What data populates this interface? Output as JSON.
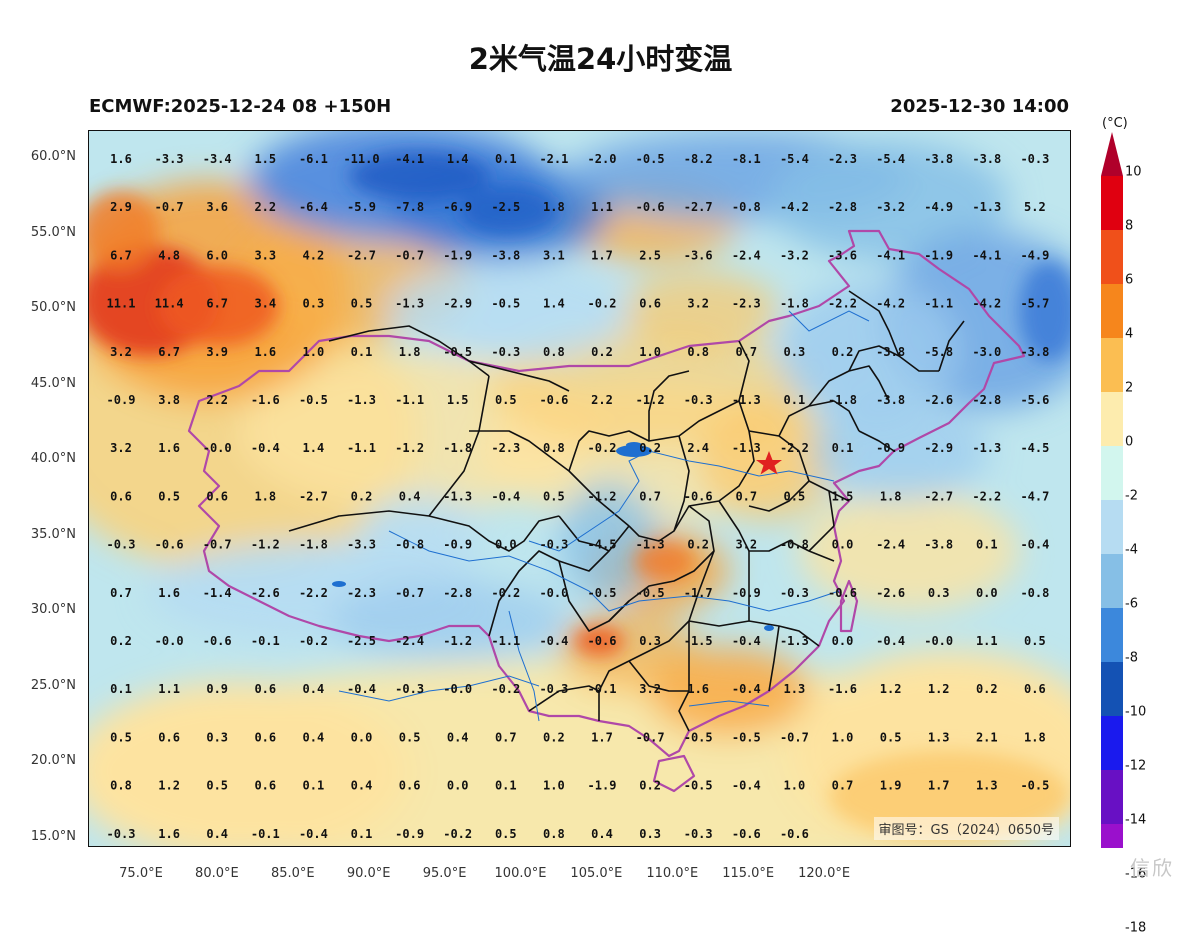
{
  "title": "2米气温24小时变温",
  "init_label": "ECMWF:2025-12-24 08 +150H",
  "valid_label": "2025-12-30 14:00",
  "approval": "审图号：GS（2024）0650号",
  "watermark": "信欣",
  "lat_labels": [
    "60.0°N",
    "55.0°N",
    "50.0°N",
    "45.0°N",
    "40.0°N",
    "35.0°N",
    "30.0°N",
    "25.0°N",
    "20.0°N",
    "15.0°N"
  ],
  "lon_labels": [
    "75.0°E",
    "80.0°E",
    "85.0°E",
    "90.0°E",
    "95.0°E",
    "100.0°E",
    "105.0°E",
    "110.0°E",
    "115.0°E",
    "120.0°E"
  ],
  "colorbar": {
    "unit": "(°C)",
    "labels": [
      "10",
      "8",
      "6",
      "4",
      "2",
      "0",
      "-2",
      "-4",
      "-6",
      "-8",
      "-10",
      "-12",
      "-14",
      "-16",
      "-18"
    ],
    "colors": [
      "#b0002a",
      "#e00010",
      "#f0501a",
      "#f6861c",
      "#fbbe52",
      "#fdecae",
      "#d2f6ee",
      "#b6dcf2",
      "#86bfe6",
      "#3c88dc",
      "#1452b4",
      "#1a1aee",
      "#6810c4",
      "#9a10cc",
      "#4a0068",
      "#600010"
    ]
  },
  "grid": [
    [
      "1.6",
      "-3.3",
      "-3.4",
      "1.5",
      "-6.1",
      "-11.0",
      "-4.1",
      "1.4",
      "0.1",
      "-2.1",
      "-2.0",
      "-0.5",
      "-8.2",
      "-8.1",
      "-5.4",
      "-2.3",
      "-5.4",
      "-3.8",
      "-3.8",
      "-0.3"
    ],
    [
      "2.9",
      "-0.7",
      "3.6",
      "2.2",
      "-6.4",
      "-5.9",
      "-7.8",
      "-6.9",
      "-2.5",
      "1.8",
      "1.1",
      "-0.6",
      "-2.7",
      "-0.8",
      "-4.2",
      "-2.8",
      "-3.2",
      "-4.9",
      "-1.3",
      "5.2"
    ],
    [
      "6.7",
      "4.8",
      "6.0",
      "3.3",
      "4.2",
      "-2.7",
      "-0.7",
      "-1.9",
      "-3.8",
      "3.1",
      "1.7",
      "2.5",
      "-3.6",
      "-2.4",
      "-3.2",
      "-3.6",
      "-4.1",
      "-1.9",
      "-4.1",
      "-4.9"
    ],
    [
      "11.1",
      "11.4",
      "6.7",
      "3.4",
      "0.3",
      "0.5",
      "-1.3",
      "-2.9",
      "-0.5",
      "1.4",
      "-0.2",
      "0.6",
      "3.2",
      "-2.3",
      "-1.8",
      "-2.2",
      "-4.2",
      "-1.1",
      "-4.2",
      "-5.7"
    ],
    [
      "3.2",
      "6.7",
      "3.9",
      "1.6",
      "1.0",
      "0.1",
      "1.8",
      "-0.5",
      "-0.3",
      "0.8",
      "0.2",
      "1.0",
      "0.8",
      "0.7",
      "0.3",
      "0.2",
      "-3.8",
      "-5.8",
      "-3.0",
      "-3.8"
    ],
    [
      "-0.9",
      "3.8",
      "2.2",
      "-1.6",
      "-0.5",
      "-1.3",
      "-1.1",
      "1.5",
      "0.5",
      "-0.6",
      "2.2",
      "-1.2",
      "-0.3",
      "-1.3",
      "0.1",
      "-1.8",
      "-3.8",
      "-2.6",
      "-2.8",
      "-5.6"
    ],
    [
      "3.2",
      "1.6",
      "-0.0",
      "-0.4",
      "1.4",
      "-1.1",
      "-1.2",
      "-1.8",
      "-2.3",
      "0.8",
      "-0.2",
      "0.2",
      "2.4",
      "-1.3",
      "-2.2",
      "0.1",
      "-0.9",
      "-2.9",
      "-1.3",
      "-4.5"
    ],
    [
      "0.6",
      "0.5",
      "0.6",
      "1.8",
      "-2.7",
      "0.2",
      "0.4",
      "-1.3",
      "-0.4",
      "0.5",
      "-1.2",
      "0.7",
      "-0.6",
      "0.7",
      "0.5",
      "1.5",
      "1.8",
      "-2.7",
      "-2.2",
      "-4.7"
    ],
    [
      "-0.3",
      "-0.6",
      "-0.7",
      "-1.2",
      "-1.8",
      "-3.3",
      "-0.8",
      "-0.9",
      "0.0",
      "-0.3",
      "-4.5",
      "-1.3",
      "0.2",
      "3.2",
      "-0.8",
      "0.0",
      "-2.4",
      "-3.8",
      "0.1",
      "-0.4"
    ],
    [
      "0.7",
      "1.6",
      "-1.4",
      "-2.6",
      "-2.2",
      "-2.3",
      "-0.7",
      "-2.8",
      "-0.2",
      "-0.0",
      "-0.5",
      "-0.5",
      "-1.7",
      "-0.9",
      "-0.3",
      "-0.6",
      "-2.6",
      "0.3",
      "0.0",
      "-0.8"
    ],
    [
      "0.2",
      "-0.0",
      "-0.6",
      "-0.1",
      "-0.2",
      "-2.5",
      "-2.4",
      "-1.2",
      "-1.1",
      "-0.4",
      "-0.6",
      "0.3",
      "-1.5",
      "-0.4",
      "-1.3",
      "0.0",
      "-0.4",
      "-0.0",
      "1.1",
      "0.5"
    ],
    [
      "0.1",
      "1.1",
      "0.9",
      "0.6",
      "0.4",
      "-0.4",
      "-0.3",
      "-0.0",
      "-0.2",
      "-0.3",
      "-0.1",
      "3.2",
      "1.6",
      "-0.4",
      "1.3",
      "-1.6",
      "1.2",
      "1.2",
      "0.2",
      "0.6"
    ],
    [
      "0.5",
      "0.6",
      "0.3",
      "0.6",
      "0.4",
      "0.0",
      "0.5",
      "0.4",
      "0.7",
      "0.2",
      "1.7",
      "-0.7",
      "-0.5",
      "-0.5",
      "-0.7",
      "1.0",
      "0.5",
      "1.3",
      "2.1",
      "1.8"
    ],
    [
      "0.8",
      "1.2",
      "0.5",
      "0.6",
      "0.1",
      "0.4",
      "0.6",
      "0.0",
      "0.1",
      "1.0",
      "-1.9",
      "0.2",
      "-0.5",
      "-0.4",
      "1.0",
      "0.7",
      "1.9",
      "1.7",
      "1.3",
      "-0.5"
    ],
    [
      "-0.3",
      "1.6",
      "0.4",
      "-0.1",
      "-0.4",
      "0.1",
      "-0.9",
      "-0.2",
      "0.5",
      "0.8",
      "0.4",
      "0.3",
      "-0.3",
      "-0.6",
      "-0.6",
      "",
      "",
      "",
      "",
      ""
    ]
  ]
}
